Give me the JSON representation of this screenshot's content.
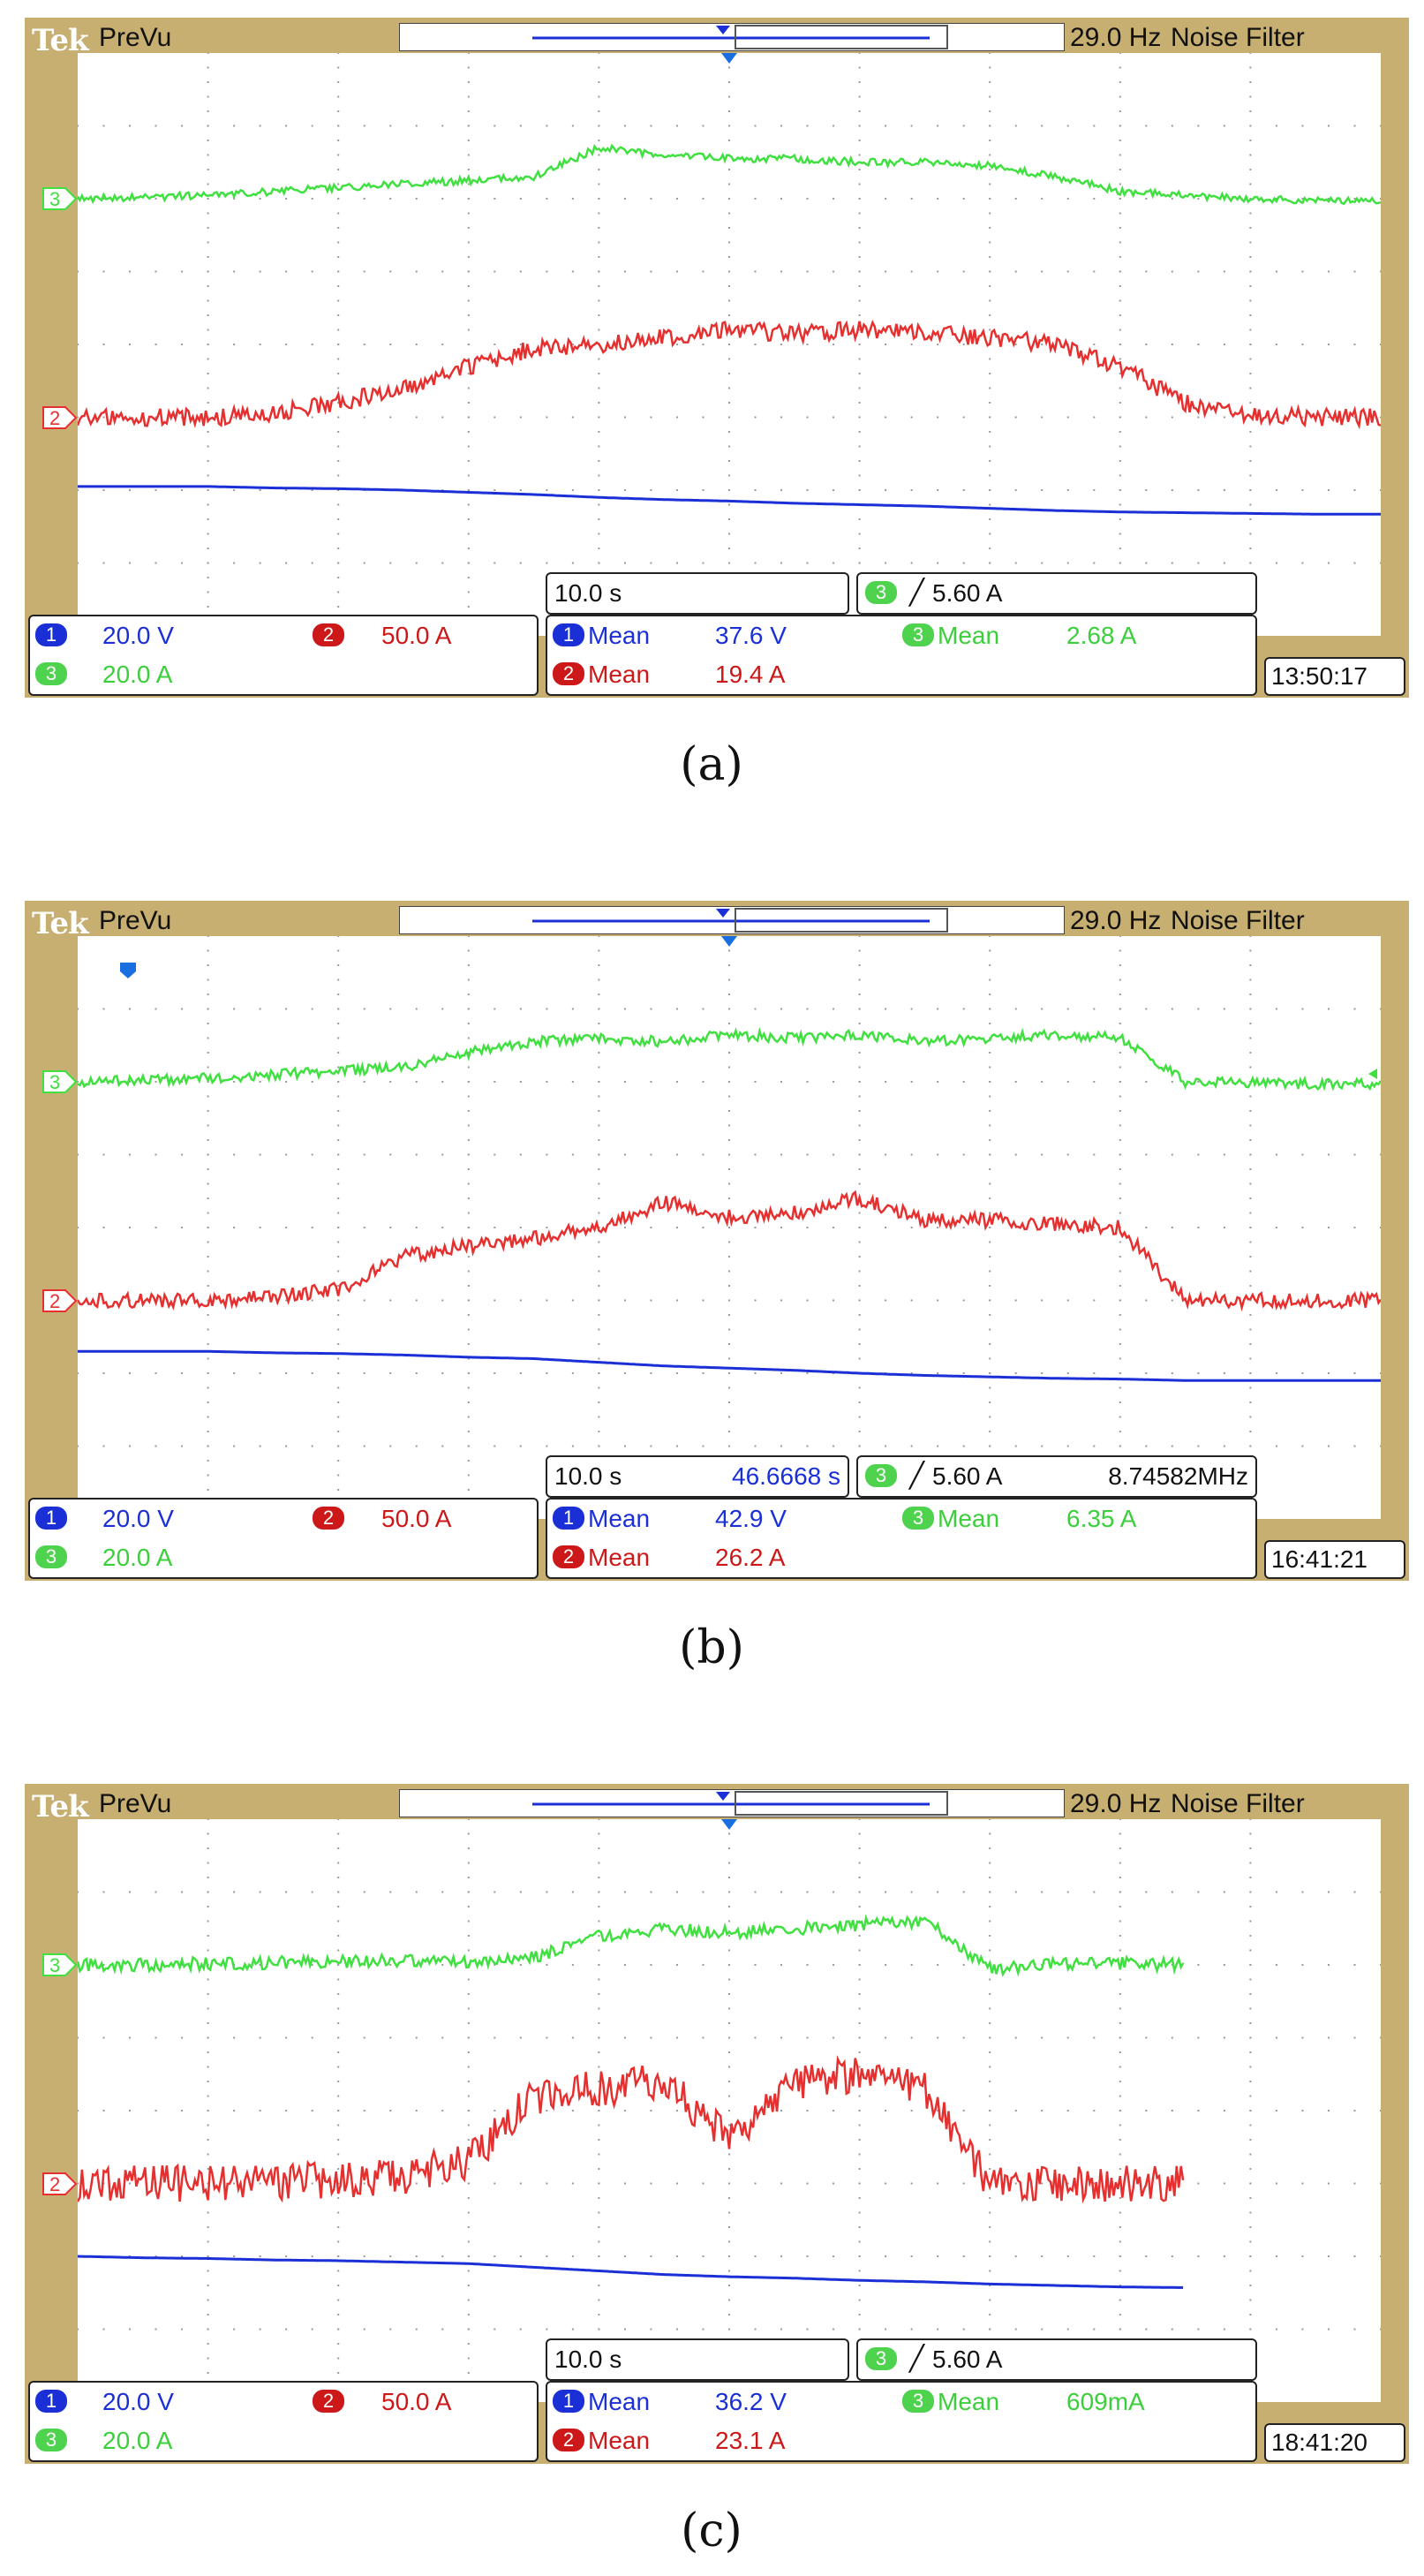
{
  "brand": "Tek",
  "mode": "PreVu",
  "frequency": "29.0 Hz",
  "filter": "Noise Filter",
  "colors": {
    "ch1": "#1a2fd6",
    "ch2": "#e63030",
    "ch3": "#40e040",
    "bezel": "#c7ae71"
  },
  "panels": [
    {
      "caption": "(a)",
      "letter": "a",
      "timebase": "10.0 s",
      "cursor": "",
      "trigger": "5.60 A",
      "trigger_freq": "",
      "ch1_scale": "20.0 V",
      "ch2_scale": "50.0 A",
      "ch3_scale": "20.0 A",
      "meas": [
        {
          "ch": "1",
          "label": "Mean",
          "value": "37.6 V"
        },
        {
          "ch": "3",
          "label": "Mean",
          "value": "2.68 A"
        },
        {
          "ch": "2",
          "label": "Mean",
          "value": "19.4 A"
        }
      ],
      "time": "13:50:17"
    },
    {
      "caption": "(b)",
      "letter": "b",
      "timebase": "10.0 s",
      "cursor": "46.6668 s",
      "trigger": "5.60 A",
      "trigger_freq": "8.74582MHz",
      "ch1_scale": "20.0 V",
      "ch2_scale": "50.0 A",
      "ch3_scale": "20.0 A",
      "meas": [
        {
          "ch": "1",
          "label": "Mean",
          "value": "42.9 V"
        },
        {
          "ch": "3",
          "label": "Mean",
          "value": "6.35 A"
        },
        {
          "ch": "2",
          "label": "Mean",
          "value": "26.2 A"
        }
      ],
      "time": "16:41:21"
    },
    {
      "caption": "(c)",
      "letter": "c",
      "timebase": "10.0 s",
      "cursor": "",
      "trigger": "5.60 A",
      "trigger_freq": "",
      "ch1_scale": "20.0 V",
      "ch2_scale": "50.0 A",
      "ch3_scale": "20.0 A",
      "meas": [
        {
          "ch": "1",
          "label": "Mean",
          "value": "36.2 V"
        },
        {
          "ch": "3",
          "label": "Mean",
          "value": "609mA"
        },
        {
          "ch": "2",
          "label": "Mean",
          "value": "23.1 A"
        }
      ],
      "time": "18:41:20"
    }
  ],
  "chart_data": [
    {
      "type": "line",
      "x_divisions": 10,
      "y_divisions": 8,
      "x": [
        0,
        0.5,
        1,
        1.5,
        2,
        2.5,
        3,
        3.5,
        4,
        4.5,
        5,
        5.5,
        6,
        6.5,
        7,
        7.5,
        8,
        8.5,
        9,
        9.5,
        10
      ],
      "series": [
        {
          "channel": "3",
          "noise": 0.05,
          "values": [
            6.0,
            6.02,
            6.05,
            6.1,
            6.15,
            6.2,
            6.25,
            6.3,
            6.7,
            6.6,
            6.55,
            6.55,
            6.5,
            6.5,
            6.45,
            6.3,
            6.1,
            6.05,
            6.0,
            5.98,
            5.97
          ]
        },
        {
          "channel": "2",
          "noise": 0.12,
          "values": [
            3.0,
            3.0,
            3.0,
            3.05,
            3.2,
            3.4,
            3.7,
            3.95,
            4.0,
            4.1,
            4.2,
            4.15,
            4.2,
            4.15,
            4.1,
            4.0,
            3.7,
            3.2,
            3.02,
            3.0,
            3.0
          ]
        },
        {
          "channel": "1",
          "noise": 0.0,
          "values": [
            2.05,
            2.05,
            2.05,
            2.03,
            2.02,
            2.0,
            1.97,
            1.94,
            1.9,
            1.87,
            1.85,
            1.82,
            1.8,
            1.78,
            1.75,
            1.72,
            1.7,
            1.69,
            1.68,
            1.67,
            1.67
          ]
        }
      ]
    },
    {
      "type": "line",
      "x_divisions": 10,
      "y_divisions": 8,
      "x": [
        0,
        0.5,
        1,
        1.5,
        2,
        2.5,
        3,
        3.5,
        4,
        4.5,
        5,
        5.5,
        6,
        6.5,
        7,
        7.5,
        8,
        8.5,
        9,
        9.5,
        10
      ],
      "series": [
        {
          "channel": "3",
          "noise": 0.07,
          "values": [
            6.0,
            6.02,
            6.05,
            6.1,
            6.15,
            6.2,
            6.4,
            6.55,
            6.6,
            6.55,
            6.65,
            6.6,
            6.65,
            6.55,
            6.6,
            6.65,
            6.6,
            6.0,
            5.98,
            5.97,
            5.97
          ]
        },
        {
          "channel": "2",
          "noise": 0.1,
          "values": [
            3.0,
            3.0,
            3.0,
            3.05,
            3.15,
            3.6,
            3.75,
            3.85,
            4.0,
            4.35,
            4.15,
            4.2,
            4.4,
            4.1,
            4.1,
            4.05,
            4.0,
            3.0,
            3.0,
            3.0,
            3.0
          ]
        },
        {
          "channel": "1",
          "noise": 0.0,
          "values": [
            2.3,
            2.3,
            2.3,
            2.28,
            2.27,
            2.25,
            2.22,
            2.2,
            2.15,
            2.1,
            2.07,
            2.04,
            2.0,
            1.97,
            1.95,
            1.93,
            1.92,
            1.9,
            1.9,
            1.9,
            1.9
          ]
        }
      ]
    },
    {
      "type": "line",
      "x_divisions": 10,
      "y_divisions": 8,
      "x": [
        0,
        0.5,
        1,
        1.5,
        2,
        2.5,
        3,
        3.5,
        4,
        4.5,
        5,
        5.5,
        6,
        6.5,
        7,
        7.5,
        8,
        8.5,
        9,
        9.5,
        10
      ],
      "series": [
        {
          "channel": "3",
          "noise": 0.09,
          "values": [
            6.0,
            6.0,
            6.02,
            6.03,
            6.05,
            6.05,
            6.05,
            6.1,
            6.4,
            6.5,
            6.45,
            6.5,
            6.55,
            6.6,
            5.95,
            6.0,
            6.02,
            6.0,
            null,
            null,
            null
          ]
        },
        {
          "channel": "2",
          "noise": 0.25,
          "values": [
            3.0,
            3.0,
            3.0,
            3.02,
            3.05,
            3.1,
            3.3,
            4.2,
            4.3,
            4.4,
            3.6,
            4.4,
            4.5,
            4.3,
            3.0,
            3.0,
            3.0,
            3.0,
            null,
            null,
            null
          ]
        },
        {
          "channel": "1",
          "noise": 0.0,
          "values": [
            2.0,
            1.98,
            1.97,
            1.95,
            1.94,
            1.92,
            1.9,
            1.85,
            1.8,
            1.75,
            1.72,
            1.7,
            1.67,
            1.65,
            1.62,
            1.6,
            1.58,
            1.57,
            null,
            null,
            null
          ]
        }
      ]
    }
  ]
}
